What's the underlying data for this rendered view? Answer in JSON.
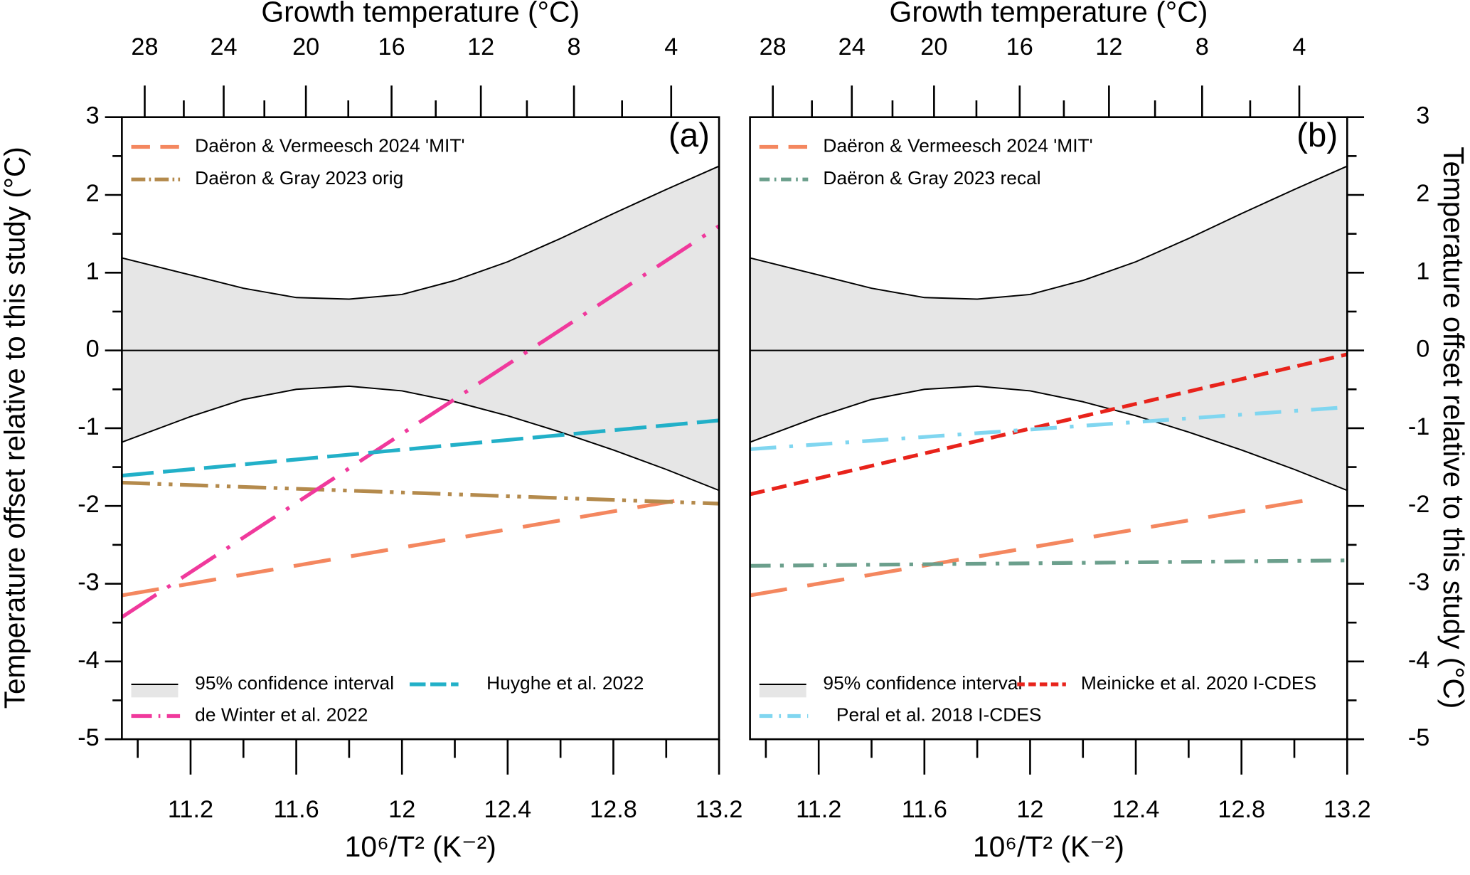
{
  "chart_data": [
    {
      "type": "line",
      "panel_label": "(a)",
      "yaxis_side": "left",
      "x2label": "Growth temperature (°C)",
      "xlabel": "10⁶/T² (K⁻²)",
      "ylabel": "Temperature offset relative to this study (°C)",
      "xlim": [
        10.94,
        13.2
      ],
      "xticks": [
        11.2,
        11.6,
        12,
        12.4,
        12.8,
        13.2
      ],
      "xminor": [
        11.0,
        11.4,
        11.8,
        12.2,
        12.6,
        13.0
      ],
      "x2ticks": [
        28,
        24,
        20,
        16,
        12,
        8,
        4
      ],
      "x2minor": [
        26,
        22,
        18,
        14,
        10,
        6,
        2
      ],
      "ylim": [
        -5,
        3
      ],
      "yticks": [
        -5,
        -4,
        -3,
        -2,
        -1,
        0,
        1,
        2,
        3
      ],
      "yminor": [
        -4.5,
        -3.5,
        -2.5,
        -1.5,
        -0.5,
        0.5,
        1.5,
        2.5
      ],
      "band": {
        "name": "95% confidence interval",
        "color": "#e6e6e6",
        "x": [
          10.94,
          11.2,
          11.4,
          11.6,
          11.8,
          12.0,
          12.2,
          12.4,
          12.6,
          12.8,
          13.0,
          13.2
        ],
        "upper": [
          1.19,
          0.97,
          0.8,
          0.68,
          0.66,
          0.72,
          0.9,
          1.14,
          1.44,
          1.76,
          2.07,
          2.37
        ],
        "lower": [
          -1.18,
          -0.85,
          -0.63,
          -0.5,
          -0.46,
          -0.52,
          -0.66,
          -0.84,
          -1.05,
          -1.28,
          -1.53,
          -1.8
        ],
        "mid": [
          0,
          0,
          0,
          0,
          0,
          0,
          0,
          0,
          0,
          0,
          0,
          0
        ]
      },
      "series": [
        {
          "name": "Daëron & Vermeesch 2024 'MIT'",
          "color": "#f4875f",
          "dash": "40 22",
          "x": [
            10.94,
            13.04
          ],
          "values": [
            -3.15,
            -1.93
          ]
        },
        {
          "name": "Daëron & Gray 2023 orig",
          "color": "#b48a4c",
          "dash": "30 8 4 8 4 8",
          "x": [
            10.94,
            13.2
          ],
          "values": [
            -1.7,
            -1.97
          ]
        },
        {
          "name": "de Winter et al. 2022",
          "color": "#f0399c",
          "dash": "44 14 4 14",
          "x": [
            10.94,
            13.2
          ],
          "values": [
            -3.43,
            1.6
          ]
        },
        {
          "name": "Huyghe et al. 2022",
          "color": "#22b0c8",
          "dash": "34 10",
          "x": [
            10.94,
            13.2
          ],
          "values": [
            -1.61,
            -0.9
          ]
        }
      ]
    },
    {
      "type": "line",
      "panel_label": "(b)",
      "yaxis_side": "right",
      "x2label": "Growth temperature (°C)",
      "xlabel": "10⁶/T² (K⁻²)",
      "ylabel": "Temperature offset relative to this study (°C)",
      "xlim": [
        10.94,
        13.2
      ],
      "xticks": [
        11.2,
        11.6,
        12,
        12.4,
        12.8,
        13.2
      ],
      "xminor": [
        11.0,
        11.4,
        11.8,
        12.2,
        12.6,
        13.0
      ],
      "x2ticks": [
        28,
        24,
        20,
        16,
        12,
        8,
        4
      ],
      "x2minor": [
        26,
        22,
        18,
        14,
        10,
        6,
        2
      ],
      "ylim": [
        -5,
        3
      ],
      "yticks": [
        -5,
        -4,
        -3,
        -2,
        -1,
        0,
        1,
        2,
        3
      ],
      "yminor": [
        -4.5,
        -3.5,
        -2.5,
        -1.5,
        -0.5,
        0.5,
        1.5,
        2.5
      ],
      "band": {
        "name": "95% confidence interval",
        "color": "#e6e6e6",
        "x": [
          10.94,
          11.2,
          11.4,
          11.6,
          11.8,
          12.0,
          12.2,
          12.4,
          12.6,
          12.8,
          13.0,
          13.2
        ],
        "upper": [
          1.19,
          0.97,
          0.8,
          0.68,
          0.66,
          0.72,
          0.9,
          1.14,
          1.44,
          1.76,
          2.07,
          2.37
        ],
        "lower": [
          -1.18,
          -0.85,
          -0.63,
          -0.5,
          -0.46,
          -0.52,
          -0.66,
          -0.84,
          -1.05,
          -1.28,
          -1.53,
          -1.8
        ],
        "mid": [
          0,
          0,
          0,
          0,
          0,
          0,
          0,
          0,
          0,
          0,
          0,
          0
        ]
      },
      "series": [
        {
          "name": "Daëron & Vermeesch 2024 'MIT'",
          "color": "#f4875f",
          "dash": "40 22",
          "x": [
            10.94,
            13.04
          ],
          "values": [
            -3.15,
            -1.93
          ]
        },
        {
          "name": "Daëron & Gray 2023 recal",
          "color": "#6b9f8c",
          "dash": "22 10 4 10",
          "x": [
            10.94,
            13.2
          ],
          "values": [
            -2.77,
            -2.7
          ]
        },
        {
          "name": "Meinicke et al. 2020 I-CDES",
          "color": "#e8231b",
          "dash": "16 8",
          "x": [
            10.94,
            13.2
          ],
          "values": [
            -1.85,
            -0.05
          ]
        },
        {
          "name": "Peral et al. 2018 I-CDES",
          "color": "#80d6f0",
          "dash": "28 14 4 14",
          "x": [
            10.94,
            13.2
          ],
          "values": [
            -1.27,
            -0.73
          ]
        }
      ]
    }
  ]
}
